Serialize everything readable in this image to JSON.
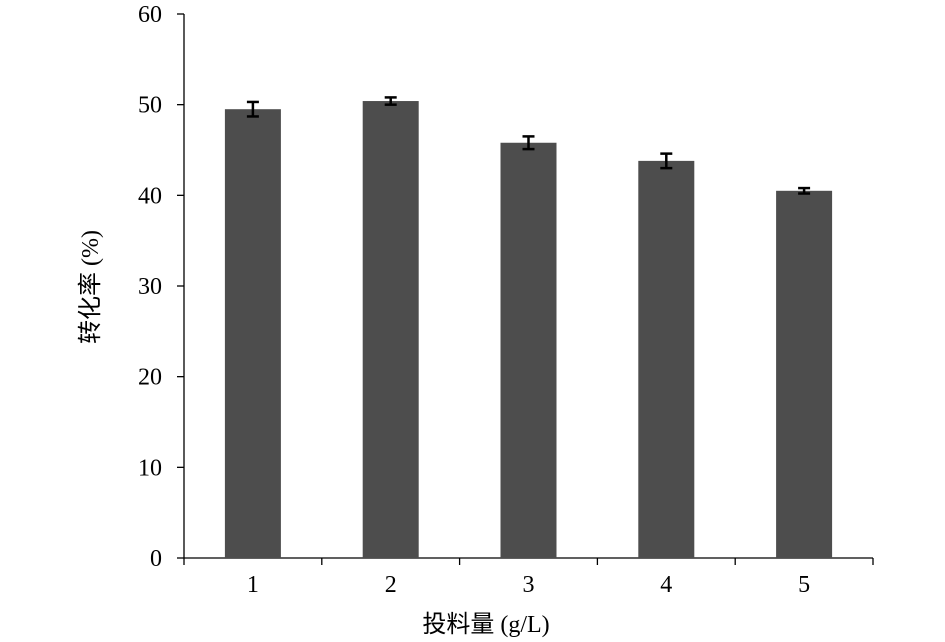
{
  "chart_data": {
    "type": "bar",
    "categories": [
      "1",
      "2",
      "3",
      "4",
      "5"
    ],
    "values": [
      49.5,
      50.4,
      45.8,
      43.8,
      40.5
    ],
    "errors": [
      0.8,
      0.4,
      0.7,
      0.8,
      0.3
    ],
    "xlabel": "投料量 (g/L)",
    "ylabel": "转化率 (%)",
    "ylim": [
      0,
      60
    ],
    "yticks": [
      0,
      10,
      20,
      30,
      40,
      50,
      60
    ],
    "grid": false,
    "bar_color": "#4d4d4d"
  }
}
